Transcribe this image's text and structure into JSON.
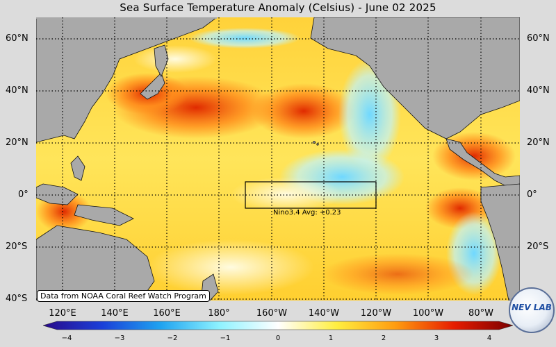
{
  "title": "Sea Surface Temperature Anomaly (Celsius) - June 02 2025",
  "lat_labels": [
    "60°N",
    "40°N",
    "20°N",
    "0°",
    "20°S",
    "40°S"
  ],
  "lon_labels": [
    "120°E",
    "140°E",
    "160°E",
    "180°",
    "160°W",
    "140°W",
    "120°W",
    "100°W",
    "80°W"
  ],
  "source_note": "Data from NOAA Coral Reef Watch Program",
  "nino_box_label": "Nino3.4 Avg: +0.23",
  "colorbar": {
    "ticks": [
      "−4",
      "−3",
      "−2",
      "−1",
      "0",
      "1",
      "2",
      "3",
      "4"
    ],
    "colors": [
      "#2a0a8a",
      "#1b3fd8",
      "#1fa3f0",
      "#8ef2ff",
      "#ffffff",
      "#ffee40",
      "#ff9c10",
      "#e61c00",
      "#7a0000"
    ]
  },
  "logo_text": "NEV LAB"
}
